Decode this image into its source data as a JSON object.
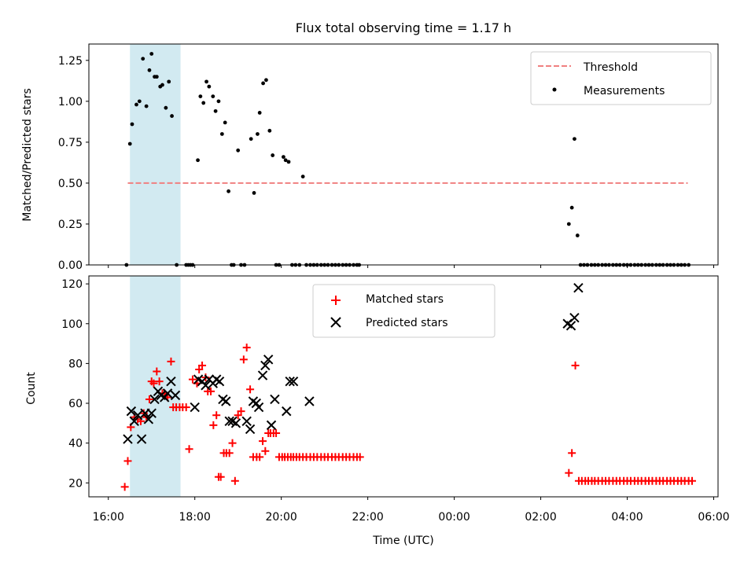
{
  "figure": {
    "title": "Flux total observing time = 1.17 h",
    "xlabel": "Time (UTC)",
    "xticks": [
      "16:00",
      "18:00",
      "20:00",
      "22:00",
      "00:00",
      "02:00",
      "04:00",
      "06:00"
    ]
  },
  "chart_data": [
    {
      "type": "scatter",
      "ylabel": "Matched/Predicted stars",
      "ylim": [
        0,
        1.35
      ],
      "yticks": [
        0.0,
        0.25,
        0.5,
        0.75,
        1.0,
        1.25
      ],
      "ytick_labels": [
        "0.00",
        "0.25",
        "0.50",
        "0.75",
        "1.00",
        "1.25"
      ],
      "xlim_hours": [
        15.55,
        30.1
      ],
      "shaded_span_hours": [
        16.5,
        17.67
      ],
      "shaded_color": "#add8e6",
      "legend": {
        "position": "upper right",
        "entries": [
          "Threshold",
          "Measurements"
        ]
      },
      "threshold": {
        "name": "Threshold",
        "value": 0.5,
        "x_range_hours": [
          16.45,
          29.4
        ],
        "color": "#f08080",
        "style": "dashed"
      },
      "series": [
        {
          "name": "Measurements",
          "marker": "dot",
          "color": "#000000",
          "x_hours": [
            16.42,
            16.5,
            16.55,
            16.65,
            16.72,
            16.8,
            16.88,
            16.95,
            17.0,
            17.07,
            17.12,
            17.2,
            17.25,
            17.33,
            17.4,
            17.47,
            17.58,
            17.8,
            17.85,
            17.9,
            17.95,
            18.07,
            18.13,
            18.2,
            18.27,
            18.33,
            18.42,
            18.48,
            18.55,
            18.63,
            18.7,
            18.78,
            18.85,
            18.9,
            19.0,
            19.07,
            19.15,
            19.3,
            19.37,
            19.45,
            19.5,
            19.58,
            19.65,
            19.73,
            19.8,
            19.88,
            19.95,
            20.05,
            20.1,
            20.17,
            20.25,
            20.33,
            20.42,
            20.5,
            20.58,
            20.67,
            20.75,
            20.83,
            20.92,
            21.0,
            21.08,
            21.17,
            21.25,
            21.33,
            21.42,
            21.5,
            21.58,
            21.67,
            21.75,
            21.8,
            26.65,
            26.72,
            26.78,
            26.85,
            26.92,
            27.0,
            27.08,
            27.17,
            27.25,
            27.33,
            27.42,
            27.5,
            27.58,
            27.67,
            27.75,
            27.83,
            27.92,
            28.0,
            28.08,
            28.17,
            28.25,
            28.33,
            28.42,
            28.5,
            28.58,
            28.67,
            28.75,
            28.83,
            28.92,
            29.0,
            29.08,
            29.17,
            29.25,
            29.33,
            29.42
          ],
          "y": [
            0.0,
            0.74,
            0.86,
            0.98,
            1.0,
            1.26,
            0.97,
            1.19,
            1.29,
            1.15,
            1.15,
            1.09,
            1.1,
            0.96,
            1.12,
            0.91,
            0.0,
            0.0,
            0.0,
            0.0,
            0.0,
            0.64,
            1.03,
            0.99,
            1.12,
            1.09,
            1.03,
            0.94,
            1.0,
            0.8,
            0.87,
            0.45,
            0.0,
            0.0,
            0.7,
            0.0,
            0.0,
            0.77,
            0.44,
            0.8,
            0.93,
            1.11,
            1.13,
            0.82,
            0.67,
            0.0,
            0.0,
            0.66,
            0.64,
            0.63,
            0.0,
            0.0,
            0.0,
            0.54,
            0.0,
            0.0,
            0.0,
            0.0,
            0.0,
            0.0,
            0.0,
            0.0,
            0.0,
            0.0,
            0.0,
            0.0,
            0.0,
            0.0,
            0.0,
            0.0,
            0.25,
            0.35,
            0.77,
            0.18,
            0.0,
            0.0,
            0.0,
            0.0,
            0.0,
            0.0,
            0.0,
            0.0,
            0.0,
            0.0,
            0.0,
            0.0,
            0.0,
            0.0,
            0.0,
            0.0,
            0.0,
            0.0,
            0.0,
            0.0,
            0.0,
            0.0,
            0.0,
            0.0,
            0.0,
            0.0,
            0.0,
            0.0,
            0.0,
            0.0,
            0.0
          ]
        }
      ]
    },
    {
      "type": "scatter",
      "ylabel": "Count",
      "ylim": [
        13,
        124
      ],
      "yticks": [
        20,
        40,
        60,
        80,
        100,
        120
      ],
      "ytick_labels": [
        "20",
        "40",
        "60",
        "80",
        "100",
        "120"
      ],
      "xlim_hours": [
        15.55,
        30.1
      ],
      "shaded_span_hours": [
        16.5,
        17.67
      ],
      "shaded_color": "#add8e6",
      "legend": {
        "position": "upper center",
        "entries": [
          "Matched stars",
          "Predicted stars"
        ]
      },
      "series": [
        {
          "name": "Matched stars",
          "marker": "plus",
          "color": "#ff0000",
          "x_hours": [
            16.38,
            16.45,
            16.52,
            16.6,
            16.68,
            16.75,
            16.82,
            16.88,
            16.95,
            17.0,
            17.05,
            17.12,
            17.18,
            17.25,
            17.3,
            17.37,
            17.45,
            17.5,
            17.57,
            17.65,
            17.72,
            17.8,
            17.87,
            17.95,
            18.05,
            18.1,
            18.17,
            18.25,
            18.3,
            18.37,
            18.43,
            18.5,
            18.55,
            18.6,
            18.67,
            18.73,
            18.8,
            18.87,
            18.93,
            19.0,
            19.07,
            19.13,
            19.2,
            19.28,
            19.35,
            19.43,
            19.5,
            19.57,
            19.63,
            19.7,
            19.75,
            19.82,
            19.88,
            19.95,
            20.02,
            20.08,
            20.15,
            20.22,
            20.28,
            20.35,
            20.42,
            20.5,
            20.58,
            20.67,
            20.75,
            20.83,
            20.92,
            21.0,
            21.08,
            21.17,
            21.25,
            21.33,
            21.42,
            21.5,
            21.58,
            21.67,
            21.75,
            21.82,
            26.65,
            26.72,
            26.8,
            26.88,
            26.95,
            27.03,
            27.1,
            27.18,
            27.25,
            27.33,
            27.42,
            27.5,
            27.58,
            27.67,
            27.75,
            27.83,
            27.92,
            28.0,
            28.08,
            28.17,
            28.25,
            28.33,
            28.42,
            28.5,
            28.58,
            28.67,
            28.75,
            28.83,
            28.92,
            29.0,
            29.08,
            29.17,
            29.25,
            29.33,
            29.42,
            29.5
          ],
          "y": [
            18,
            31,
            48,
            53,
            52,
            51,
            55,
            53,
            62,
            71,
            70,
            76,
            71,
            65,
            65,
            63,
            81,
            58,
            58,
            58,
            58,
            58,
            37,
            72,
            70,
            77,
            79,
            73,
            66,
            66,
            49,
            54,
            23,
            23,
            35,
            35,
            35,
            40,
            21,
            54,
            56,
            82,
            88,
            67,
            33,
            33,
            33,
            41,
            36,
            45,
            45,
            45,
            45,
            33,
            33,
            33,
            33,
            33,
            33,
            33,
            33,
            33,
            33,
            33,
            33,
            33,
            33,
            33,
            33,
            33,
            33,
            33,
            33,
            33,
            33,
            33,
            33,
            33,
            25,
            35,
            79,
            21,
            21,
            21,
            21,
            21,
            21,
            21,
            21,
            21,
            21,
            21,
            21,
            21,
            21,
            21,
            21,
            21,
            21,
            21,
            21,
            21,
            21,
            21,
            21,
            21,
            21,
            21,
            21,
            21,
            21,
            21,
            21,
            21
          ]
        },
        {
          "name": "Predicted stars",
          "marker": "x",
          "color": "#000000",
          "x_hours": [
            16.45,
            16.53,
            16.6,
            16.68,
            16.77,
            16.85,
            16.93,
            17.0,
            17.07,
            17.15,
            17.22,
            17.3,
            17.37,
            17.45,
            17.55,
            18.0,
            18.08,
            18.17,
            18.25,
            18.33,
            18.42,
            18.5,
            18.57,
            18.65,
            18.72,
            18.8,
            18.87,
            18.95,
            19.2,
            19.28,
            19.35,
            19.42,
            19.48,
            19.57,
            19.63,
            19.7,
            19.77,
            19.85,
            20.12,
            20.2,
            20.28,
            20.65,
            26.62,
            26.7,
            26.78,
            26.87
          ],
          "y": [
            42,
            56,
            51,
            54,
            42,
            55,
            52,
            55,
            62,
            66,
            64,
            63,
            65,
            71,
            64,
            58,
            72,
            71,
            69,
            72,
            70,
            72,
            71,
            62,
            61,
            51,
            51,
            50,
            51,
            47,
            61,
            60,
            58,
            74,
            79,
            82,
            49,
            62,
            56,
            71,
            71,
            61,
            100,
            99,
            103,
            118
          ]
        }
      ]
    }
  ]
}
